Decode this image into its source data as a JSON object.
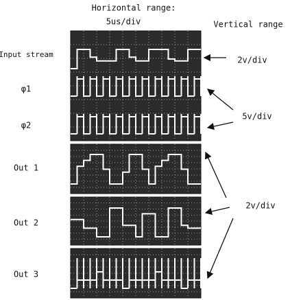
{
  "header": {
    "horizontal_label": "Horizontal range:",
    "horizontal_value": "5us/div",
    "vertical_label": "Vertical range"
  },
  "traces": [
    {
      "label": "Input stream"
    },
    {
      "label": "φ1"
    },
    {
      "label": "φ2"
    },
    {
      "label": "Out 1"
    },
    {
      "label": "Out 2"
    },
    {
      "label": "Out 3"
    }
  ],
  "scales": [
    {
      "label": "2v/div"
    },
    {
      "label": "5v/div"
    },
    {
      "label": "2v/div"
    }
  ]
}
